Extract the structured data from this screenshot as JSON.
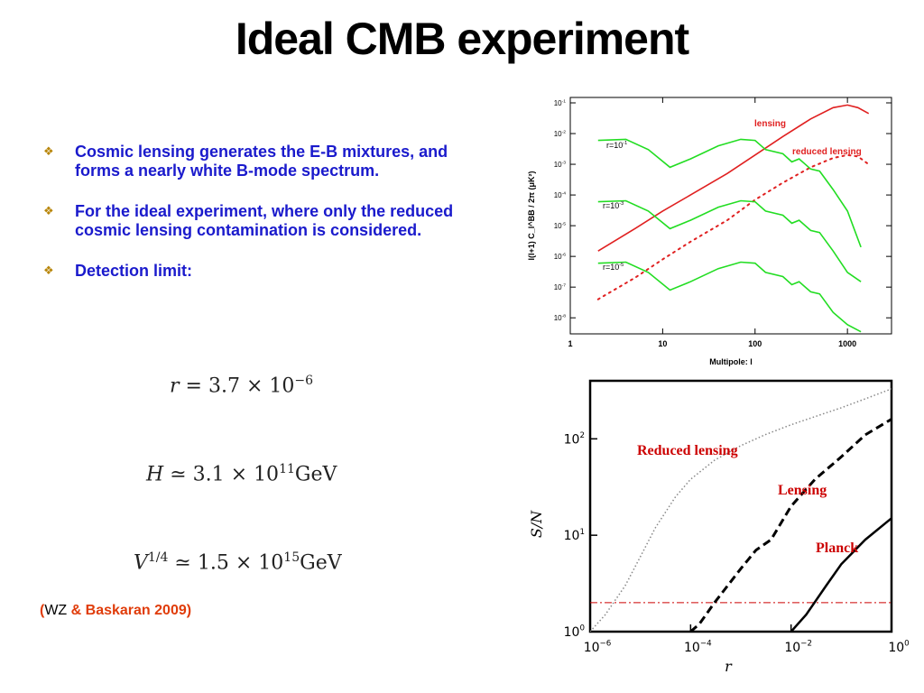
{
  "slide": {
    "title": "Ideal CMB experiment",
    "bullet_marker": "❖",
    "bullets": [
      "Cosmic lensing generates the E-B mixtures, and forms a nearly white B-mode spectrum.",
      "For the ideal experiment, where only the reduced cosmic lensing contamination is considered.",
      "Detection limit:"
    ],
    "equations": {
      "r": {
        "lhs": "r",
        "rel": "=",
        "mantissa": "3.7",
        "times": "×",
        "base": "10",
        "exp": "−6",
        "unit": ""
      },
      "H": {
        "lhs": "H",
        "rel": "≃",
        "mantissa": "3.1",
        "times": "×",
        "base": "10",
        "exp": "11",
        "unit": "GeV"
      },
      "V": {
        "lhs": "V",
        "lhs_exp": "1/4",
        "rel": "≃",
        "mantissa": "1.5",
        "times": "×",
        "base": "10",
        "exp": "15",
        "unit": "GeV"
      }
    },
    "citation": {
      "open": "(",
      "author1": "WZ",
      "rest": " & Baskaran 2009)"
    }
  },
  "chart_data": [
    {
      "type": "line",
      "xlabel": "Multipole: l",
      "ylabel": "l(l+1) C_l^BB / 2π (μK²)",
      "xscale": "log",
      "yscale": "log",
      "xlim": [
        1,
        3000
      ],
      "ylim": [
        3e-09,
        0.15
      ],
      "xticks": [
        "1",
        "10",
        "100",
        "1000"
      ],
      "yticks": [
        {
          "base": "10",
          "exp": "-1"
        },
        {
          "base": "10",
          "exp": "-2"
        },
        {
          "base": "10",
          "exp": "-3"
        },
        {
          "base": "10",
          "exp": "-4"
        },
        {
          "base": "10",
          "exp": "-5"
        },
        {
          "base": "10",
          "exp": "-6"
        },
        {
          "base": "10",
          "exp": "-7"
        },
        {
          "base": "10",
          "exp": "-8"
        }
      ],
      "colors": {
        "lensing": "#e02020",
        "tensor": "#22dd22"
      },
      "series": [
        {
          "name": "lensing",
          "style": "solid",
          "color": "#e02020",
          "x": [
            2,
            5,
            10,
            20,
            50,
            100,
            200,
            400,
            700,
            1000,
            1300,
            1700
          ],
          "y": [
            1.5e-06,
            8e-06,
            3e-05,
            0.0001,
            0.0005,
            0.002,
            0.008,
            0.03,
            0.07,
            0.085,
            0.07,
            0.045
          ]
        },
        {
          "name": "reduced lensing",
          "style": "dotted",
          "color": "#e02020",
          "x": [
            2,
            5,
            10,
            20,
            50,
            100,
            200,
            400,
            700,
            1000,
            1300,
            1700
          ],
          "y": [
            4e-08,
            2e-07,
            8e-07,
            3e-06,
            1.5e-05,
            7e-05,
            0.00025,
            0.0008,
            0.0016,
            0.002,
            0.0018,
            0.001
          ]
        },
        {
          "name": "r=10",
          "name_exp": "-1",
          "style": "solid",
          "color": "#22dd22",
          "x": [
            2,
            4,
            7,
            12,
            20,
            40,
            70,
            100,
            130,
            200,
            250,
            300,
            400,
            500,
            700,
            1000,
            1400
          ],
          "y": [
            0.006,
            0.0065,
            0.003,
            0.0008,
            0.0015,
            0.004,
            0.0065,
            0.006,
            0.003,
            0.0022,
            0.0012,
            0.0015,
            0.0007,
            0.0006,
            0.00015,
            3e-05,
            2e-06
          ]
        },
        {
          "name": "r=10",
          "name_exp": "-3",
          "style": "solid",
          "color": "#22dd22",
          "x": [
            2,
            4,
            7,
            12,
            20,
            40,
            70,
            100,
            130,
            200,
            250,
            300,
            400,
            500,
            700,
            1000,
            1400
          ],
          "y": [
            6e-05,
            6.5e-05,
            3e-05,
            8e-06,
            1.5e-05,
            4e-05,
            6.5e-05,
            6e-05,
            3e-05,
            2.2e-05,
            1.2e-05,
            1.5e-05,
            7e-06,
            6e-06,
            1.5e-06,
            3e-07,
            1.5e-07
          ]
        },
        {
          "name": "r=10",
          "name_exp": "-5",
          "style": "solid",
          "color": "#22dd22",
          "x": [
            2,
            4,
            7,
            12,
            20,
            40,
            70,
            100,
            130,
            200,
            250,
            300,
            400,
            500,
            700,
            1000,
            1400
          ],
          "y": [
            6e-07,
            6.5e-07,
            3e-07,
            8e-08,
            1.5e-07,
            4e-07,
            6.5e-07,
            6e-07,
            3e-07,
            2.2e-07,
            1.2e-07,
            1.5e-07,
            7e-08,
            6e-08,
            1.5e-08,
            6e-09,
            3.5e-09
          ]
        }
      ]
    },
    {
      "type": "line",
      "xlabel": "r",
      "ylabel": "S/N",
      "xscale": "log",
      "yscale": "log",
      "xlim": [
        1e-06,
        1
      ],
      "ylim": [
        1,
        400
      ],
      "xticks": [
        {
          "base": "10",
          "exp": "−6"
        },
        {
          "base": "10",
          "exp": "−4"
        },
        {
          "base": "10",
          "exp": "−2"
        },
        {
          "base": "10",
          "exp": "0"
        }
      ],
      "yticks": [
        {
          "base": "10",
          "exp": "0"
        },
        {
          "base": "10",
          "exp": "1"
        },
        {
          "base": "10",
          "exp": "2"
        }
      ],
      "threshold": {
        "y": 2,
        "color": "#cc0000",
        "style": "dash-dot"
      },
      "series": [
        {
          "name": "Reduced lensing",
          "style": "dotted",
          "color": "#888888",
          "x": [
            1e-06,
            2e-06,
            5e-06,
            1e-05,
            2e-05,
            5e-05,
            0.0001,
            0.0003,
            0.001,
            0.003,
            0.01,
            0.03,
            0.1,
            0.3,
            1
          ],
          "y": [
            1,
            1.5,
            3,
            6,
            12,
            25,
            38,
            60,
            85,
            110,
            140,
            170,
            210,
            260,
            330
          ]
        },
        {
          "name": "Lensing",
          "style": "dashed",
          "color": "#000000",
          "x": [
            0.0001,
            0.00015,
            0.0003,
            0.001,
            0.002,
            0.004,
            0.01,
            0.03,
            0.1,
            0.3,
            1
          ],
          "y": [
            1,
            1.2,
            2,
            4.5,
            7,
            9,
            20,
            38,
            65,
            110,
            160
          ]
        },
        {
          "name": "Planck",
          "style": "solid",
          "color": "#000000",
          "x": [
            0.01,
            0.02,
            0.05,
            0.1,
            0.3,
            1
          ],
          "y": [
            1,
            1.5,
            3,
            5,
            9,
            15
          ]
        }
      ]
    }
  ]
}
